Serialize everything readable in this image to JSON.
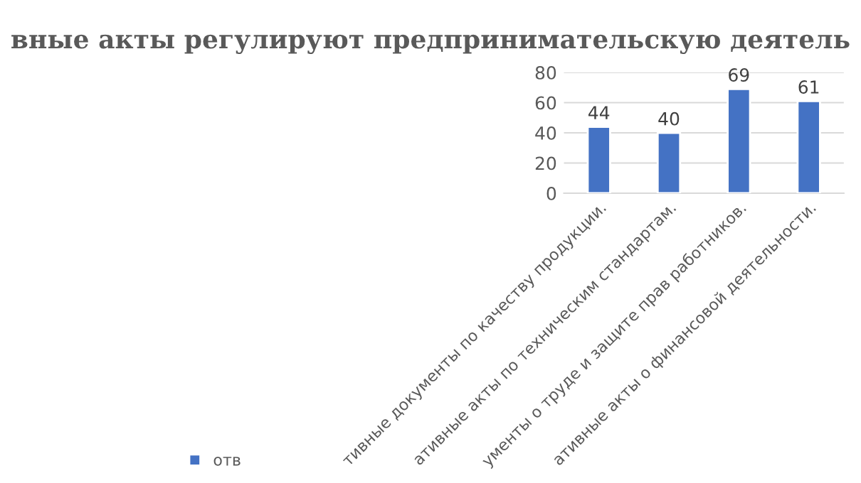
{
  "chart_data": {
    "type": "bar",
    "title": "вные акты регулируют предпринимательскую деятель",
    "categories": [
      "тивные документы по качеству продукции.",
      "ативные акты по техническим стандартам.",
      "ументы о труде и защите прав работников.",
      "ативные акты о финансовой деятельности."
    ],
    "series": [
      {
        "name": "отв",
        "color": "#4472c4",
        "values": [
          44,
          40,
          69,
          61
        ]
      }
    ],
    "ylim": [
      0,
      80
    ],
    "yticks": [
      0,
      20,
      40,
      60,
      80
    ],
    "grid": "y",
    "legend": "bottom",
    "data_labels": true
  }
}
